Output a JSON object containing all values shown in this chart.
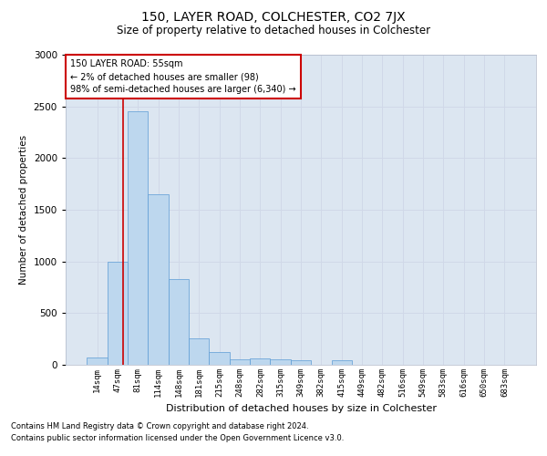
{
  "title": "150, LAYER ROAD, COLCHESTER, CO2 7JX",
  "subtitle": "Size of property relative to detached houses in Colchester",
  "xlabel": "Distribution of detached houses by size in Colchester",
  "ylabel": "Number of detached properties",
  "bar_labels": [
    "14sqm",
    "47sqm",
    "81sqm",
    "114sqm",
    "148sqm",
    "181sqm",
    "215sqm",
    "248sqm",
    "282sqm",
    "315sqm",
    "349sqm",
    "382sqm",
    "415sqm",
    "449sqm",
    "482sqm",
    "516sqm",
    "549sqm",
    "583sqm",
    "616sqm",
    "650sqm",
    "683sqm"
  ],
  "bar_values": [
    70,
    1000,
    2450,
    1650,
    830,
    260,
    120,
    55,
    65,
    55,
    45,
    0,
    40,
    0,
    0,
    0,
    0,
    0,
    0,
    0,
    0
  ],
  "bar_color": "#bdd7ee",
  "bar_edge_color": "#5b9bd5",
  "grid_color": "#d0d8e8",
  "background_color": "#dce6f1",
  "ylim": [
    0,
    3000
  ],
  "yticks": [
    0,
    500,
    1000,
    1500,
    2000,
    2500,
    3000
  ],
  "property_line_x": 1.27,
  "property_line_color": "#cc0000",
  "annotation_text": "150 LAYER ROAD: 55sqm\n← 2% of detached houses are smaller (98)\n98% of semi-detached houses are larger (6,340) →",
  "annotation_box_color": "#ffffff",
  "annotation_box_edge_color": "#cc0000",
  "footer_line1": "Contains HM Land Registry data © Crown copyright and database right 2024.",
  "footer_line2": "Contains public sector information licensed under the Open Government Licence v3.0."
}
